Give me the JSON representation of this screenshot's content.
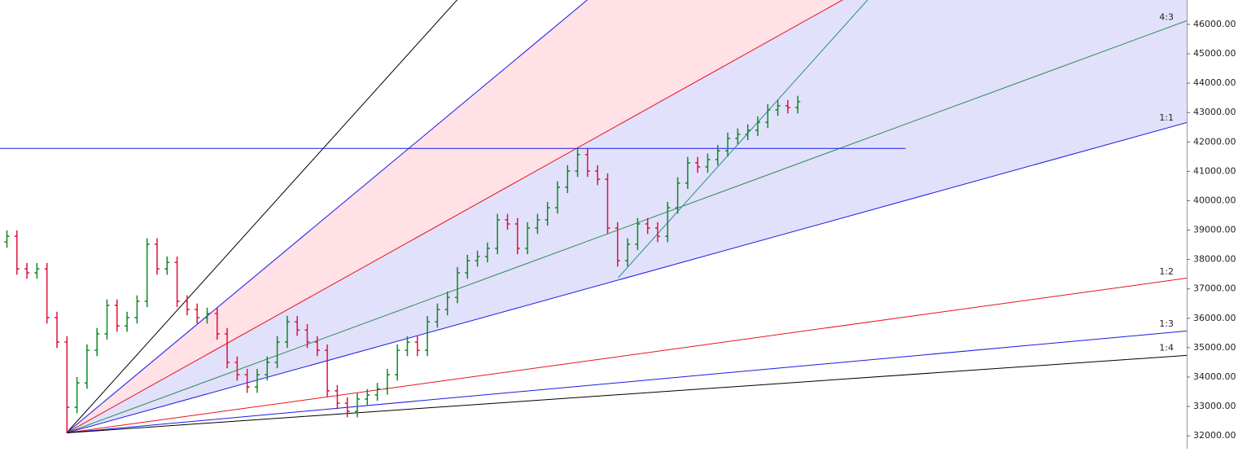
{
  "chart_data": {
    "type": "ohlc",
    "open": [
      38600,
      38790,
      37680,
      37545,
      37680,
      36020,
      35190,
      32970,
      33800,
      34910,
      35470,
      36440,
      35740,
      36020,
      36580,
      38520,
      37680,
      37900,
      36580,
      36300,
      36020,
      36160,
      35470,
      34500,
      34080,
      33660,
      34080,
      34500,
      35190,
      35880,
      35600,
      35190,
      34910,
      33530,
      33110,
      32830,
      33250,
      33390,
      33600,
      34080,
      34910,
      35190,
      34910,
      35880,
      36300,
      36710,
      37545,
      37960,
      38100,
      38380,
      39350,
      39210,
      38380,
      39070,
      39350,
      39760,
      40460,
      41010,
      41570,
      41010,
      40730,
      39070,
      37960,
      38520,
      39210,
      39070,
      38790,
      39760,
      40600,
      41290,
      41150,
      41400,
      41700,
      42120,
      42260,
      42400,
      42670,
      43090,
      43230,
      43170
    ],
    "high": [
      38990,
      38990,
      37880,
      37880,
      37880,
      36220,
      35390,
      34000,
      35110,
      35670,
      36640,
      36640,
      36220,
      36780,
      38720,
      38720,
      38100,
      38100,
      36780,
      36500,
      36360,
      36360,
      35670,
      34700,
      34280,
      34280,
      34700,
      35390,
      36080,
      36080,
      35800,
      35390,
      35110,
      33730,
      33310,
      33450,
      33590,
      33800,
      34280,
      35110,
      35390,
      35390,
      36080,
      36500,
      36910,
      37745,
      38160,
      38300,
      38580,
      39550,
      39550,
      39410,
      39270,
      39550,
      39960,
      40660,
      41210,
      41770,
      41770,
      41210,
      40930,
      39270,
      38720,
      39410,
      39410,
      39270,
      39960,
      40800,
      41490,
      41490,
      41600,
      41900,
      42320,
      42460,
      42600,
      42870,
      43290,
      43430,
      43430,
      43570
    ],
    "low": [
      38400,
      37480,
      37345,
      37345,
      35820,
      34990,
      32100,
      32770,
      33600,
      34710,
      35270,
      35540,
      35540,
      35820,
      36380,
      37480,
      37480,
      36380,
      36100,
      35820,
      35820,
      35270,
      34300,
      33880,
      33460,
      33460,
      33880,
      34300,
      34990,
      35400,
      34990,
      34710,
      33330,
      32910,
      32630,
      32630,
      33050,
      33190,
      33400,
      33880,
      34710,
      34710,
      34710,
      35680,
      36100,
      36510,
      37345,
      37760,
      37900,
      38180,
      39010,
      38180,
      38180,
      38870,
      39150,
      39560,
      40260,
      40810,
      40810,
      40530,
      38870,
      37760,
      37760,
      38320,
      38870,
      38590,
      38590,
      39560,
      40400,
      40950,
      40950,
      41200,
      41500,
      41920,
      42060,
      42200,
      42470,
      42890,
      42970,
      42970
    ],
    "close": [
      38790,
      37680,
      37545,
      37680,
      36020,
      35190,
      32970,
      33800,
      34910,
      35470,
      36440,
      35740,
      36020,
      36580,
      38520,
      37680,
      37900,
      36580,
      36300,
      36020,
      36160,
      35470,
      34500,
      34080,
      33660,
      34080,
      34500,
      35190,
      35880,
      35600,
      35190,
      34910,
      33530,
      33110,
      32830,
      33250,
      33390,
      33600,
      34080,
      34910,
      35190,
      34910,
      35880,
      36300,
      36710,
      37545,
      37960,
      38100,
      38380,
      39350,
      39210,
      38380,
      39070,
      39350,
      39760,
      40460,
      41010,
      41570,
      41010,
      40730,
      39070,
      37960,
      38520,
      39210,
      39070,
      38790,
      39760,
      40600,
      41290,
      41150,
      41400,
      41700,
      42120,
      42260,
      42400,
      42670,
      43090,
      43230,
      43170,
      43370
    ],
    "up_color": "#0b8a1e",
    "down_color": "#e0103c",
    "ylim": [
      31560,
      46830
    ],
    "yticks": [
      {
        "value": 32000,
        "label": "32000.00"
      },
      {
        "value": 33000,
        "label": "33000.00"
      },
      {
        "value": 34000,
        "label": "34000.00"
      },
      {
        "value": 35000,
        "label": "35000.00"
      },
      {
        "value": 36000,
        "label": "36000.00"
      },
      {
        "value": 37000,
        "label": "37000.00"
      },
      {
        "value": 38000,
        "label": "38000.00"
      },
      {
        "value": 39000,
        "label": "39000.00"
      },
      {
        "value": 40000,
        "label": "40000.00"
      },
      {
        "value": 41000,
        "label": "41000.00"
      },
      {
        "value": 42000,
        "label": "42000.00"
      },
      {
        "value": 43000,
        "label": "43000.00"
      },
      {
        "value": 44000,
        "label": "44000.00"
      },
      {
        "value": 45000,
        "label": "45000.00"
      },
      {
        "value": 46000,
        "label": "46000.00"
      }
    ],
    "fan": {
      "origin": [
        6,
        32100
      ],
      "lines": [
        {
          "color": "#000000",
          "to": [
            45,
            46830
          ]
        },
        {
          "color": "#1a1ae6",
          "to": [
            58,
            46830
          ]
        },
        {
          "color": "#e6141e",
          "to": [
            83.5,
            46830
          ]
        },
        {
          "label": "4:3",
          "color": "#2e8b57",
          "to": [
            118,
            46140
          ]
        },
        {
          "label": "1:1",
          "color": "#1a1ae6",
          "to": [
            118,
            42670
          ]
        },
        {
          "label": "1:2",
          "color": "#e6141e",
          "to": [
            118,
            37370
          ]
        },
        {
          "label": "1:3",
          "color": "#1a1ae6",
          "to": [
            118,
            35570
          ]
        },
        {
          "label": "1:4",
          "color": "#000000",
          "to": [
            118,
            34740
          ]
        }
      ],
      "fills": [
        {
          "between": [
            1,
            2
          ],
          "color": "#ffe1e6"
        },
        {
          "between": [
            2,
            4
          ],
          "color": "#e1e1fb"
        }
      ]
    },
    "trendline": {
      "from": [
        61.1,
        37380
      ],
      "to": [
        86,
        46830
      ],
      "color": "#2e8b8b"
    },
    "hline": {
      "price": 41780,
      "to_x": 89.8,
      "color": "#1a1ae6"
    }
  }
}
